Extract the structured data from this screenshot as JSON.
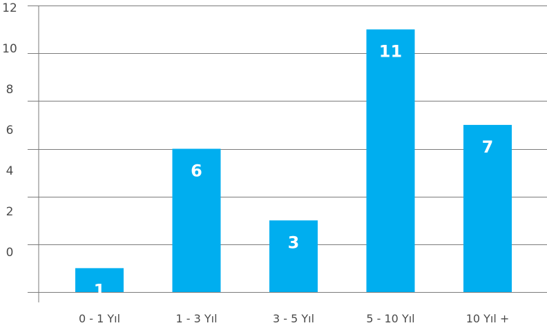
{
  "chart_data": {
    "type": "bar",
    "categories": [
      "0 - 1 Yıl",
      "1 - 3 Yıl",
      "3 - 5 Yıl",
      "5 - 10 Yıl",
      "10 Yıl +"
    ],
    "values": [
      1,
      6,
      3,
      11,
      7
    ],
    "data_labels": [
      "1",
      "6",
      "3",
      "11",
      "7"
    ],
    "yticks": [
      "12",
      "10",
      "8",
      "6",
      "4",
      "2",
      "0"
    ],
    "ylim": [
      0,
      12
    ],
    "grid": true,
    "bar_color": "#00aeef",
    "label_color": "#ffffff"
  }
}
